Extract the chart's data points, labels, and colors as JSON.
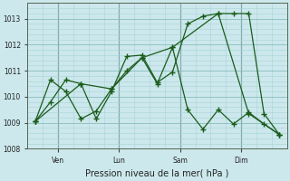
{
  "xlabel": "Pression niveau de la mer( hPa )",
  "background_color": "#cce8ec",
  "grid_color_minor": "#a8d4d8",
  "grid_color_major": "#88bcbc",
  "line_color": "#1a5c1a",
  "ylim": [
    1008.0,
    1013.6
  ],
  "yticks": [
    1008,
    1009,
    1010,
    1011,
    1012,
    1013
  ],
  "xlim": [
    -0.5,
    16.5
  ],
  "vline_x": [
    1.5,
    5.5,
    9.5,
    13.5
  ],
  "xtick_major_pos": [
    1.5,
    5.5,
    9.5,
    13.5
  ],
  "xtick_labels_day": [
    "Ven",
    "Lun",
    "Sam",
    "Dim"
  ],
  "series1_x": [
    0.0,
    1.0,
    2.0,
    3.0,
    4.0,
    5.0,
    6.0,
    7.0,
    8.0,
    9.0,
    10.0,
    11.0,
    12.0,
    13.0,
    14.0,
    15.0,
    16.0
  ],
  "series1_y": [
    1009.05,
    1009.8,
    1010.65,
    1010.5,
    1009.15,
    1010.2,
    1011.55,
    1011.6,
    1010.55,
    1010.95,
    1012.8,
    1013.1,
    1013.2,
    1013.2,
    1013.2,
    1009.35,
    1008.55
  ],
  "series2_x": [
    0.0,
    1.0,
    2.0,
    3.0,
    4.0,
    5.0,
    6.0,
    7.0,
    8.0,
    9.0,
    10.0,
    11.0,
    12.0,
    13.0,
    14.0,
    15.0,
    16.0
  ],
  "series2_y": [
    1009.05,
    1010.65,
    1010.2,
    1009.15,
    1009.45,
    1010.3,
    1011.0,
    1011.5,
    1010.5,
    1011.9,
    1009.5,
    1008.75,
    1009.5,
    1008.95,
    1009.4,
    1008.95,
    1008.55
  ],
  "series3_x": [
    0.0,
    3.0,
    5.0,
    7.0,
    9.0,
    12.0,
    14.0,
    16.0
  ],
  "series3_y": [
    1009.05,
    1010.5,
    1010.3,
    1011.5,
    1011.9,
    1013.2,
    1009.35,
    1008.55
  ]
}
